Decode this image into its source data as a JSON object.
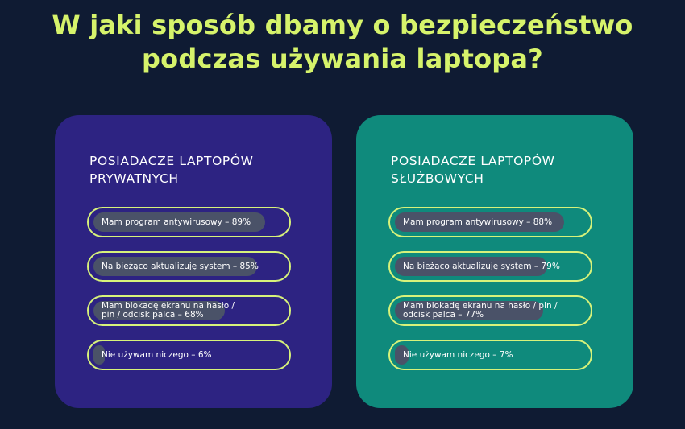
{
  "title": {
    "line1": "W jaki sposób dbamy o bezpieczeństwo",
    "line2": "podczas używania laptopa?"
  },
  "colors": {
    "background": "#0f1b33",
    "title": "#d6f36b",
    "card_private": "#2d2382",
    "card_business": "#0f8a7c",
    "bar_border": "#d7f27a",
    "bar_fill": "#4a5268"
  },
  "chart_data": [
    {
      "type": "bar",
      "title_line1": "POSIADACZE LAPTOPÓW",
      "title_line2": "PRYWATNYCH",
      "categories": [
        "Mam program antywirusowy – 89%",
        "Na bieżąco aktualizuję system – 85%",
        "Mam blokadę ekranu na hasło /\npin / odcisk palca – 68%",
        "Nie używam niczego – 6%"
      ],
      "values": [
        89,
        85,
        68,
        6
      ],
      "ylim": [
        0,
        100
      ]
    },
    {
      "type": "bar",
      "title_line1": "POSIADACZE LAPTOPÓW",
      "title_line2": "SŁUŻBOWYCH",
      "categories": [
        "Mam program antywirusowy – 88%",
        "Na bieżąco aktualizuję system – 79%",
        "Mam blokadę ekranu na hasło / pin /\nodcisk palca – 77%",
        "Nie używam niczego – 7%"
      ],
      "values": [
        88,
        79,
        77,
        7
      ],
      "ylim": [
        0,
        100
      ]
    }
  ]
}
